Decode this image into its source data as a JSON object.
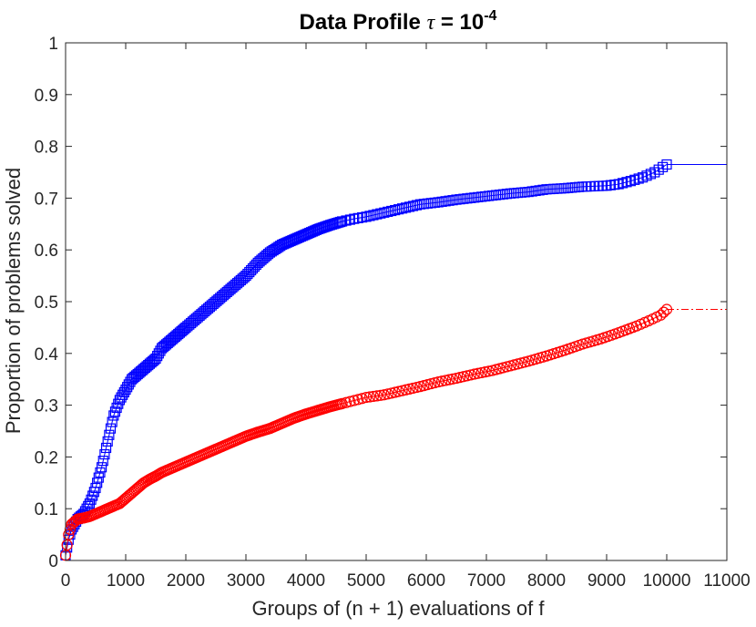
{
  "chart_data": {
    "type": "line",
    "title_prefix": "Data Profile ",
    "title_tau": "τ",
    "title_eq": " = 10",
    "title_exp": "-4",
    "xlabel": "Groups of (n + 1) evaluations of f",
    "ylabel": "Proportion of problems solved",
    "xlim": [
      0,
      11000
    ],
    "ylim": [
      0,
      1
    ],
    "xticks": [
      0,
      1000,
      2000,
      3000,
      4000,
      5000,
      6000,
      7000,
      8000,
      9000,
      10000,
      11000
    ],
    "yticks": [
      0,
      0.1,
      0.2,
      0.3,
      0.4,
      0.5,
      0.6,
      0.7,
      0.8,
      0.9,
      1
    ],
    "grid": false,
    "series": [
      {
        "marker": "square",
        "color": "#0000ff",
        "line_style": "solid",
        "x": [
          0,
          50,
          100,
          200,
          300,
          400,
          500,
          600,
          700,
          800,
          900,
          1000,
          1100,
          1200,
          1300,
          1400,
          1500,
          1600,
          1700,
          1800,
          1900,
          2000,
          2200,
          2400,
          2600,
          2800,
          3000,
          3200,
          3400,
          3600,
          3800,
          4000,
          4200,
          4400,
          4600,
          4800,
          5000,
          5300,
          5600,
          5900,
          6200,
          6500,
          6800,
          7100,
          7400,
          7700,
          8000,
          8300,
          8600,
          9000,
          9200,
          9400,
          9600,
          9800,
          10000
        ],
        "y": [
          0.01,
          0.04,
          0.06,
          0.08,
          0.09,
          0.11,
          0.14,
          0.18,
          0.23,
          0.28,
          0.31,
          0.33,
          0.35,
          0.36,
          0.37,
          0.38,
          0.39,
          0.41,
          0.42,
          0.43,
          0.44,
          0.45,
          0.47,
          0.49,
          0.51,
          0.53,
          0.55,
          0.575,
          0.595,
          0.61,
          0.62,
          0.63,
          0.64,
          0.648,
          0.655,
          0.66,
          0.664,
          0.672,
          0.68,
          0.688,
          0.692,
          0.697,
          0.701,
          0.705,
          0.709,
          0.712,
          0.717,
          0.719,
          0.722,
          0.724,
          0.727,
          0.733,
          0.74,
          0.75,
          0.765
        ],
        "tail_to": 11000,
        "tail_y": 0.765
      },
      {
        "marker": "circle",
        "color": "#ff0000",
        "line_style": "dashdot",
        "x": [
          0,
          50,
          100,
          200,
          300,
          400,
          500,
          600,
          700,
          800,
          900,
          1000,
          1100,
          1200,
          1300,
          1400,
          1500,
          1600,
          1800,
          2000,
          2200,
          2400,
          2600,
          2800,
          3000,
          3200,
          3400,
          3600,
          3800,
          4000,
          4200,
          4400,
          4600,
          4800,
          5000,
          5300,
          5600,
          5900,
          6200,
          6500,
          6800,
          7100,
          7400,
          7700,
          8000,
          8300,
          8600,
          8900,
          9200,
          9500,
          9700,
          9900,
          10000
        ],
        "y": [
          0.01,
          0.05,
          0.07,
          0.08,
          0.082,
          0.085,
          0.09,
          0.095,
          0.1,
          0.105,
          0.11,
          0.12,
          0.13,
          0.14,
          0.15,
          0.157,
          0.163,
          0.17,
          0.18,
          0.19,
          0.2,
          0.21,
          0.22,
          0.23,
          0.24,
          0.248,
          0.255,
          0.265,
          0.275,
          0.283,
          0.29,
          0.297,
          0.303,
          0.309,
          0.315,
          0.32,
          0.328,
          0.336,
          0.345,
          0.352,
          0.36,
          0.367,
          0.376,
          0.385,
          0.395,
          0.406,
          0.418,
          0.428,
          0.44,
          0.453,
          0.463,
          0.474,
          0.485
        ],
        "tail_to": 11000,
        "tail_y": 0.485
      }
    ]
  }
}
